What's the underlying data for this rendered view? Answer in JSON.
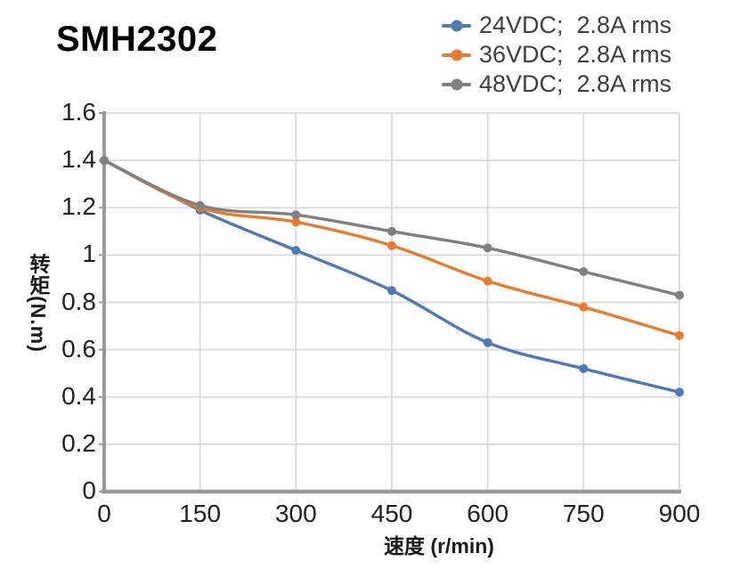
{
  "title": "SMH2302",
  "legend": {
    "position": "top-right",
    "items": [
      {
        "label": "24VDC；2.8A rms",
        "color": "#4e79b7"
      },
      {
        "label": "36VDC；2.8A rms",
        "color": "#e57c30"
      },
      {
        "label": "48VDC；2.8A rms",
        "color": "#808080"
      }
    ]
  },
  "chart_data": {
    "type": "line",
    "smooth": true,
    "marker": "circle",
    "title": "SMH2302",
    "xlabel": "速度（r/min）",
    "ylabel": "转矩(N.m)",
    "x": [
      0,
      150,
      300,
      450,
      600,
      750,
      900
    ],
    "x_ticks": [
      "0",
      "150",
      "300",
      "450",
      "600",
      "750",
      "900"
    ],
    "y_ticks": [
      "0",
      "0.2",
      "0.4",
      "0.6",
      "0.8",
      "1",
      "1.2",
      "1.4",
      "1.6"
    ],
    "xlim": [
      0,
      900
    ],
    "ylim": [
      0,
      1.6
    ],
    "grid": true,
    "legend_position": "top-right",
    "series": [
      {
        "name": "24VDC；2.8A rms",
        "color": "#4e79b7",
        "values": [
          1.4,
          1.19,
          1.02,
          0.85,
          0.63,
          0.52,
          0.42
        ]
      },
      {
        "name": "36VDC；2.8A rms",
        "color": "#e57c30",
        "values": [
          1.4,
          1.2,
          1.14,
          1.04,
          0.89,
          0.78,
          0.66
        ]
      },
      {
        "name": "48VDC；2.8A rms",
        "color": "#808080",
        "values": [
          1.4,
          1.21,
          1.17,
          1.1,
          1.03,
          0.93,
          0.83
        ]
      }
    ],
    "styles": {
      "grid_color": "#d9d9d9",
      "axis_color": "#9a9a9a",
      "tick_text_color": "#212121",
      "legend_text_color": "#3f3f3f"
    }
  }
}
